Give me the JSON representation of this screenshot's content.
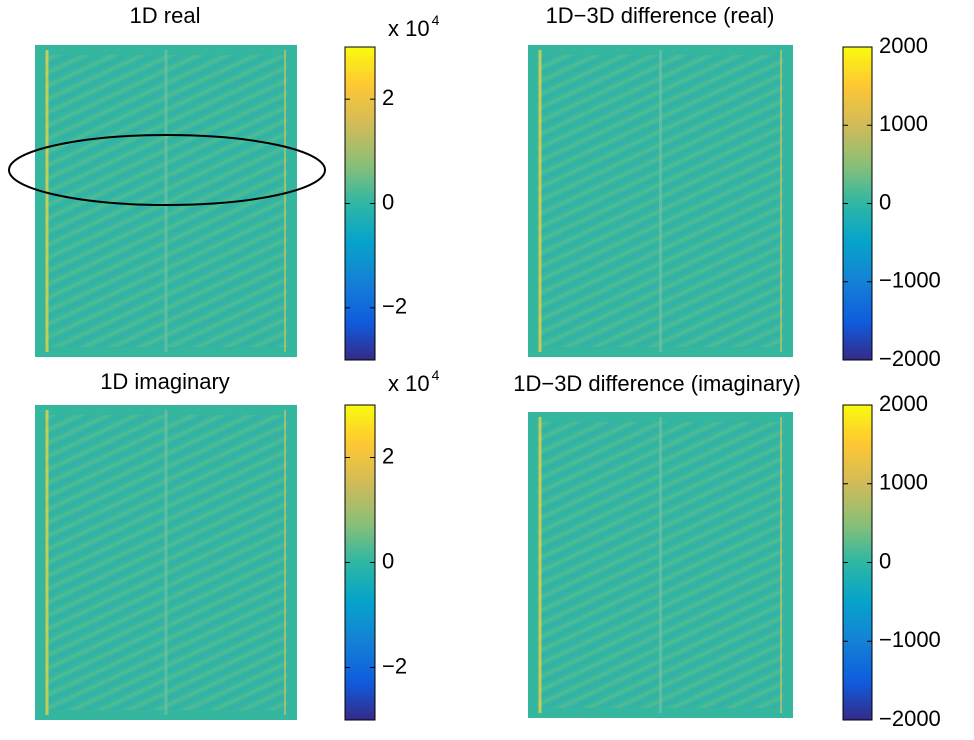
{
  "chart_data": [
    {
      "type": "heatmap",
      "title": "1D real",
      "colorbar_scale": "x 10",
      "colorbar_exponent": "4",
      "clim": [
        -30000,
        30000
      ],
      "cticks": [
        {
          "value": -20000,
          "label": "−2"
        },
        0,
        {
          "value": 20000,
          "label": "2"
        }
      ]
    },
    {
      "type": "heatmap",
      "title": "1D−3D difference (real)",
      "clim": [
        -2000,
        2000
      ],
      "cticks": [
        {
          "value": -2000,
          "label": "−2000"
        },
        {
          "value": -1000,
          "label": "−1000"
        },
        0,
        1000,
        2000
      ]
    },
    {
      "type": "heatmap",
      "title": "1D imaginary",
      "colorbar_scale": "x 10",
      "colorbar_exponent": "4",
      "clim": [
        -30000,
        30000
      ],
      "cticks": [
        {
          "value": -20000,
          "label": "−2"
        },
        0,
        {
          "value": 20000,
          "label": "2"
        }
      ]
    },
    {
      "type": "heatmap",
      "title": "1D−3D difference (imaginary)",
      "clim": [
        -2000,
        2000
      ],
      "cticks": [
        {
          "value": -2000,
          "label": "−2000"
        },
        {
          "value": -1000,
          "label": "−1000"
        },
        0,
        1000,
        2000
      ]
    }
  ]
}
